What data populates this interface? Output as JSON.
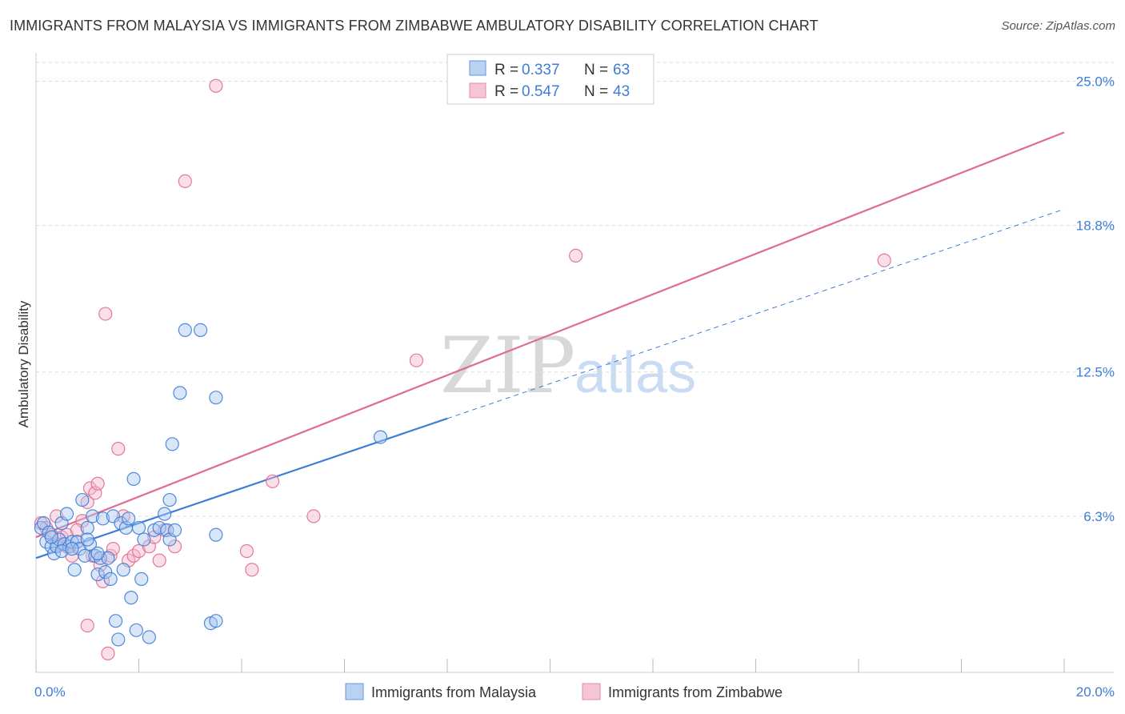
{
  "title": "IMMIGRANTS FROM MALAYSIA VS IMMIGRANTS FROM ZIMBABWE AMBULATORY DISABILITY CORRELATION CHART",
  "source": "Source: ZipAtlas.com",
  "watermark": {
    "part1": "ZIP",
    "part2": "atlas"
  },
  "colors": {
    "malaysia": "#3d7dd8",
    "zimbabwe": "#e06b93",
    "malaysia_fill": "#a8c8f0",
    "zimbabwe_fill": "#f5b7cb",
    "tick": "#3d7dd8",
    "grid": "#dddddd"
  },
  "legend": {
    "malaysia": {
      "r_label": "R =",
      "r_value": "0.337",
      "n_label": "N =",
      "n_value": "63"
    },
    "zimbabwe": {
      "r_label": "R =",
      "r_value": "0.547",
      "n_label": "N =",
      "n_value": "43"
    }
  },
  "bottom_legend": {
    "malaysia": "Immigrants from Malaysia",
    "zimbabwe": "Immigrants from Zimbabwe"
  },
  "chart_data": {
    "type": "scatter",
    "title": "IMMIGRANTS FROM MALAYSIA VS IMMIGRANTS FROM ZIMBABWE AMBULATORY DISABILITY CORRELATION CHART",
    "xlabel": "",
    "ylabel": "Ambulatory Disability",
    "xlim": [
      0,
      20
    ],
    "ylim": [
      0,
      25.6
    ],
    "x_tick_labels": [
      "0.0%",
      "20.0%"
    ],
    "y_ticks": [
      6.3,
      12.5,
      18.8,
      25.0
    ],
    "y_tick_labels": [
      "6.3%",
      "12.5%",
      "18.8%",
      "25.0%"
    ],
    "grid": true,
    "series": [
      {
        "name": "Immigrants from Malaysia",
        "r": 0.337,
        "n": 63,
        "trend": {
          "x0": 0,
          "y0": 4.5,
          "x1": 8.0,
          "y1": 10.5,
          "dash_x1": 20,
          "dash_y1": 19.5
        },
        "points": [
          [
            0.1,
            5.8
          ],
          [
            0.15,
            6.0
          ],
          [
            0.2,
            5.2
          ],
          [
            0.25,
            5.6
          ],
          [
            0.3,
            5.0
          ],
          [
            0.35,
            4.7
          ],
          [
            0.4,
            5.0
          ],
          [
            0.45,
            5.3
          ],
          [
            0.5,
            6.0
          ],
          [
            0.55,
            5.1
          ],
          [
            0.6,
            6.4
          ],
          [
            0.65,
            5.0
          ],
          [
            0.7,
            5.2
          ],
          [
            0.75,
            4.0
          ],
          [
            0.8,
            5.2
          ],
          [
            0.85,
            4.9
          ],
          [
            0.9,
            7.0
          ],
          [
            0.95,
            4.6
          ],
          [
            1.0,
            5.8
          ],
          [
            1.05,
            5.1
          ],
          [
            1.1,
            6.3
          ],
          [
            1.15,
            4.6
          ],
          [
            1.2,
            3.8
          ],
          [
            1.25,
            4.5
          ],
          [
            1.3,
            6.2
          ],
          [
            1.35,
            3.9
          ],
          [
            1.4,
            4.5
          ],
          [
            1.45,
            3.6
          ],
          [
            1.5,
            6.3
          ],
          [
            1.55,
            1.8
          ],
          [
            1.6,
            1.0
          ],
          [
            1.65,
            6.0
          ],
          [
            1.7,
            4.0
          ],
          [
            1.75,
            5.8
          ],
          [
            1.8,
            6.2
          ],
          [
            1.85,
            2.8
          ],
          [
            1.9,
            7.9
          ],
          [
            1.95,
            1.4
          ],
          [
            2.0,
            5.8
          ],
          [
            2.05,
            3.6
          ],
          [
            2.1,
            5.3
          ],
          [
            2.2,
            1.1
          ],
          [
            2.3,
            5.7
          ],
          [
            2.4,
            5.8
          ],
          [
            2.5,
            6.4
          ],
          [
            2.55,
            5.7
          ],
          [
            2.6,
            5.3
          ],
          [
            2.7,
            5.7
          ],
          [
            2.8,
            11.6
          ],
          [
            2.9,
            14.3
          ],
          [
            2.6,
            7.0
          ],
          [
            2.65,
            9.4
          ],
          [
            3.2,
            14.3
          ],
          [
            3.4,
            1.7
          ],
          [
            3.5,
            1.8
          ],
          [
            3.5,
            11.4
          ],
          [
            3.5,
            5.5
          ],
          [
            6.7,
            9.7
          ],
          [
            1.2,
            4.7
          ],
          [
            0.5,
            4.8
          ],
          [
            0.3,
            5.4
          ],
          [
            0.7,
            4.9
          ],
          [
            1.0,
            5.3
          ]
        ]
      },
      {
        "name": "Immigrants from Zimbabwe",
        "r": 0.547,
        "n": 43,
        "trend": {
          "x0": 0,
          "y0": 5.4,
          "x1": 20,
          "y1": 22.8
        },
        "points": [
          [
            0.1,
            6.0
          ],
          [
            0.2,
            5.8
          ],
          [
            0.3,
            5.5
          ],
          [
            0.4,
            6.3
          ],
          [
            0.5,
            5.4
          ],
          [
            0.6,
            5.0
          ],
          [
            0.7,
            4.6
          ],
          [
            0.8,
            5.2
          ],
          [
            0.9,
            6.1
          ],
          [
            1.0,
            6.9
          ],
          [
            1.05,
            7.5
          ],
          [
            1.1,
            4.6
          ],
          [
            1.15,
            7.3
          ],
          [
            1.2,
            7.7
          ],
          [
            1.25,
            4.2
          ],
          [
            1.3,
            3.5
          ],
          [
            1.35,
            15.0
          ],
          [
            1.4,
            0.4
          ],
          [
            1.45,
            4.6
          ],
          [
            1.5,
            4.9
          ],
          [
            1.6,
            9.2
          ],
          [
            1.7,
            6.3
          ],
          [
            1.8,
            4.4
          ],
          [
            1.9,
            4.6
          ],
          [
            2.0,
            4.8
          ],
          [
            2.2,
            5.0
          ],
          [
            2.3,
            5.4
          ],
          [
            2.4,
            4.4
          ],
          [
            2.5,
            5.7
          ],
          [
            2.7,
            5.0
          ],
          [
            2.9,
            20.7
          ],
          [
            3.5,
            24.8
          ],
          [
            4.1,
            4.8
          ],
          [
            4.2,
            4.0
          ],
          [
            4.6,
            7.8
          ],
          [
            5.4,
            6.3
          ],
          [
            7.4,
            13.0
          ],
          [
            10.5,
            17.5
          ],
          [
            16.5,
            17.3
          ],
          [
            1.0,
            1.6
          ],
          [
            0.6,
            5.5
          ],
          [
            0.4,
            5.1
          ],
          [
            0.8,
            5.7
          ]
        ]
      }
    ]
  }
}
